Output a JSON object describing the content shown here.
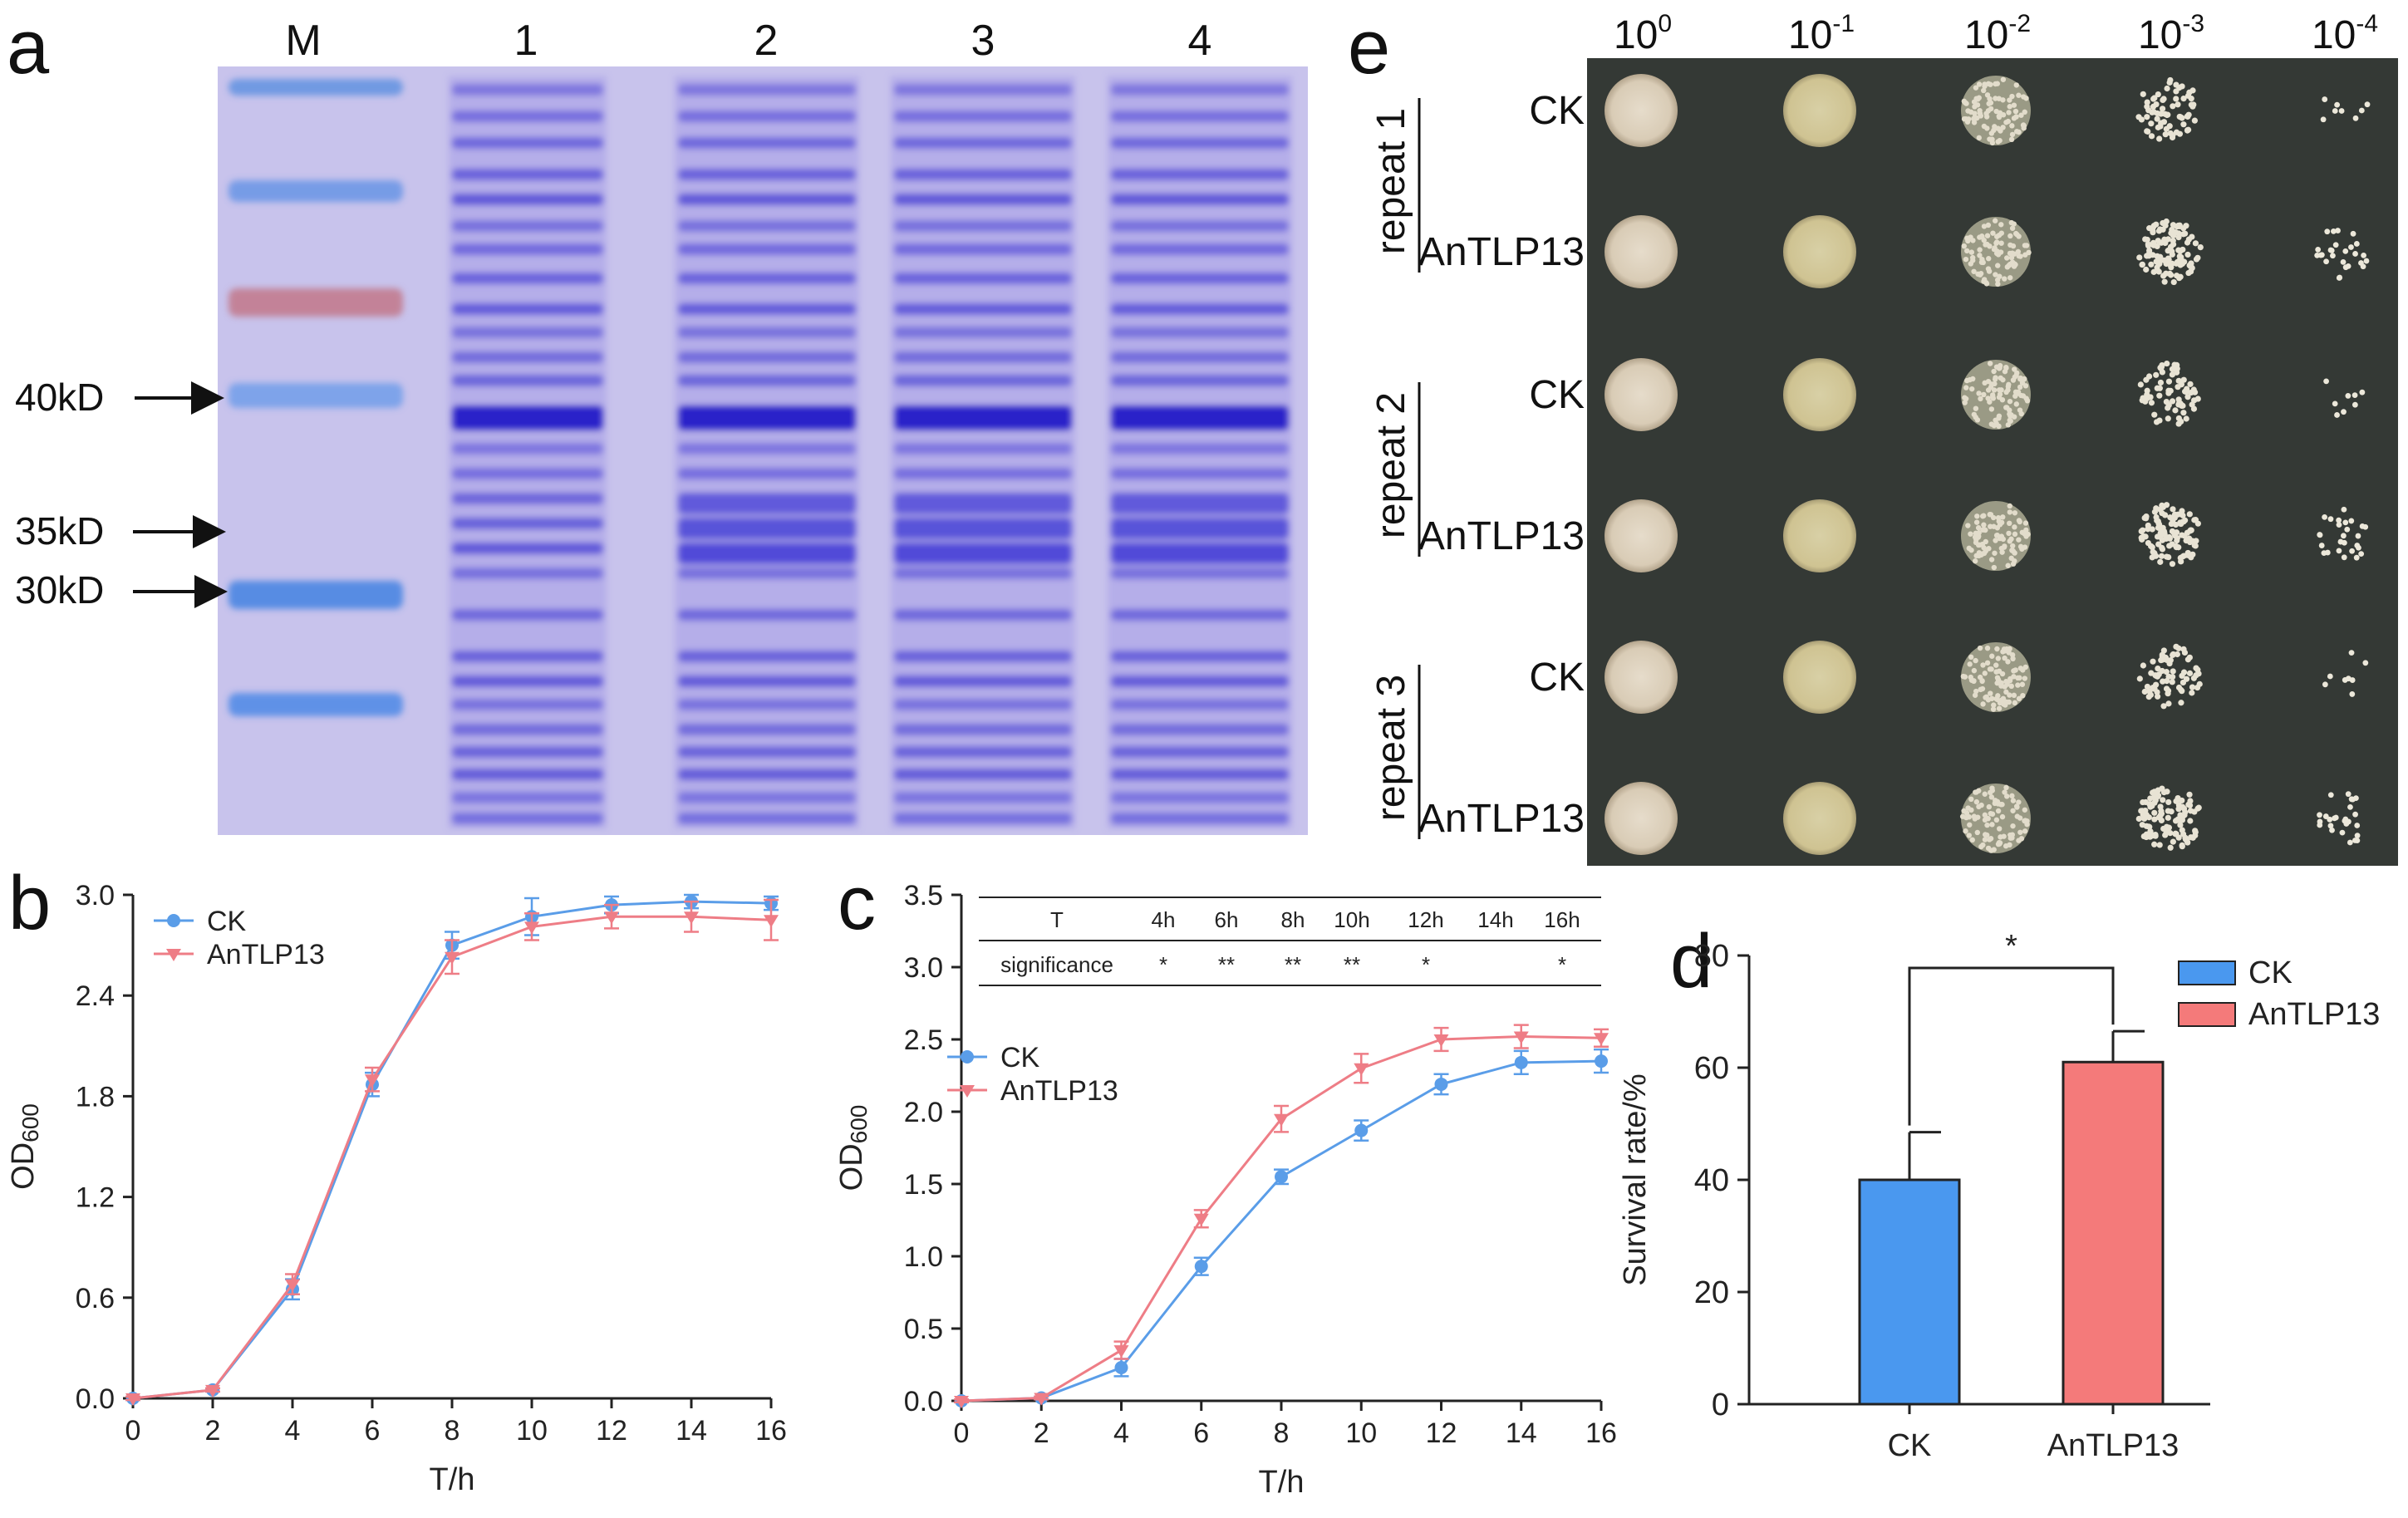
{
  "panel_a": {
    "label": "a",
    "lanes": [
      "M",
      "1",
      "2",
      "3",
      "4"
    ],
    "markers": [
      "40kD",
      "35kD",
      "30kD"
    ]
  },
  "panel_e": {
    "label": "e",
    "dilutions": [
      "10",
      "10",
      "10",
      "10",
      "10"
    ],
    "exponents": [
      "0",
      "-1",
      "-2",
      "-3",
      "-4"
    ],
    "repeats": [
      "repeat 1",
      "repeat 2",
      "repeat 3"
    ],
    "rows": [
      "CK",
      "AnTLP13",
      "CK",
      "AnTLP13",
      "CK",
      "AnTLP13"
    ]
  },
  "chart_data": [
    {
      "id": "b",
      "label": "b",
      "type": "line",
      "xlabel": "T/h",
      "ylabel": "OD600",
      "ylabel_main": "OD",
      "ylabel_sub": "600",
      "xlim": [
        0,
        16
      ],
      "ylim": [
        0,
        3.0
      ],
      "xticks": [
        0,
        2,
        4,
        6,
        8,
        10,
        12,
        14,
        16
      ],
      "yticks": [
        0.0,
        0.6,
        1.2,
        1.8,
        2.4,
        3.0
      ],
      "xtick_labels": [
        "0",
        "2",
        "4",
        "6",
        "8",
        "10",
        "12",
        "14",
        "16"
      ],
      "ytick_labels": [
        "0.0",
        "0.6",
        "1.2",
        "1.8",
        "2.4",
        "3.0"
      ],
      "x": [
        0,
        2,
        4,
        6,
        8,
        10,
        12,
        14,
        16
      ],
      "series": [
        {
          "name": "CK",
          "color": "#5a9de8",
          "marker": "circle",
          "values": [
            0.0,
            0.05,
            0.65,
            1.87,
            2.7,
            2.87,
            2.94,
            2.96,
            2.95
          ],
          "err": [
            0.01,
            0.01,
            0.06,
            0.07,
            0.08,
            0.11,
            0.05,
            0.04,
            0.04
          ]
        },
        {
          "name": "AnTLP13",
          "color": "#ee7d86",
          "marker": "triangle",
          "values": [
            0.0,
            0.05,
            0.68,
            1.9,
            2.63,
            2.81,
            2.87,
            2.87,
            2.85
          ],
          "err": [
            0.01,
            0.01,
            0.06,
            0.07,
            0.1,
            0.08,
            0.07,
            0.09,
            0.12
          ]
        }
      ]
    },
    {
      "id": "c",
      "label": "c",
      "type": "line",
      "xlabel": "T/h",
      "ylabel": "OD600",
      "ylabel_main": "OD",
      "ylabel_sub": "600",
      "xlim": [
        0,
        16
      ],
      "ylim": [
        0,
        3.5
      ],
      "xticks": [
        0,
        2,
        4,
        6,
        8,
        10,
        12,
        14,
        16
      ],
      "yticks": [
        0.0,
        0.5,
        1.0,
        1.5,
        2.0,
        2.5,
        3.0,
        3.5
      ],
      "xtick_labels": [
        "0",
        "2",
        "4",
        "6",
        "8",
        "10",
        "12",
        "14",
        "16"
      ],
      "ytick_labels": [
        "0.0",
        "0.5",
        "1.0",
        "1.5",
        "2.0",
        "2.5",
        "3.0",
        "3.5"
      ],
      "x": [
        0,
        2,
        4,
        6,
        8,
        10,
        12,
        14,
        16
      ],
      "series": [
        {
          "name": "CK",
          "color": "#5a9de8",
          "marker": "circle",
          "values": [
            0.0,
            0.02,
            0.23,
            0.93,
            1.55,
            1.87,
            2.19,
            2.34,
            2.35
          ],
          "err": [
            0.01,
            0.01,
            0.06,
            0.06,
            0.05,
            0.07,
            0.07,
            0.08,
            0.08
          ]
        },
        {
          "name": "AnTLP13",
          "color": "#ee7d86",
          "marker": "triangle",
          "values": [
            0.0,
            0.02,
            0.35,
            1.26,
            1.95,
            2.3,
            2.5,
            2.52,
            2.51
          ],
          "err": [
            0.01,
            0.01,
            0.06,
            0.06,
            0.09,
            0.1,
            0.08,
            0.08,
            0.06
          ]
        }
      ],
      "table": {
        "header_label": "T",
        "row_label": "significance",
        "times": [
          "4h",
          "6h",
          "8h",
          "10h",
          "12h",
          "14h",
          "16h"
        ],
        "significance": [
          "*",
          "**",
          "**",
          "**",
          "*",
          "",
          "*"
        ]
      }
    },
    {
      "id": "d",
      "label": "d",
      "type": "bar",
      "categories": [
        "CK",
        "AnTLP13"
      ],
      "values": [
        40,
        61
      ],
      "err": [
        8.5,
        5.5
      ],
      "colors": [
        "#4a98ef",
        "#f47a7a"
      ],
      "ylabel": "Survival rate/%",
      "ylim": [
        0,
        80
      ],
      "yticks": [
        0,
        20,
        40,
        60,
        80
      ],
      "ytick_labels": [
        "0",
        "20",
        "40",
        "60",
        "80"
      ],
      "significance": "*",
      "legend": [
        "CK",
        "AnTLP13"
      ]
    }
  ]
}
